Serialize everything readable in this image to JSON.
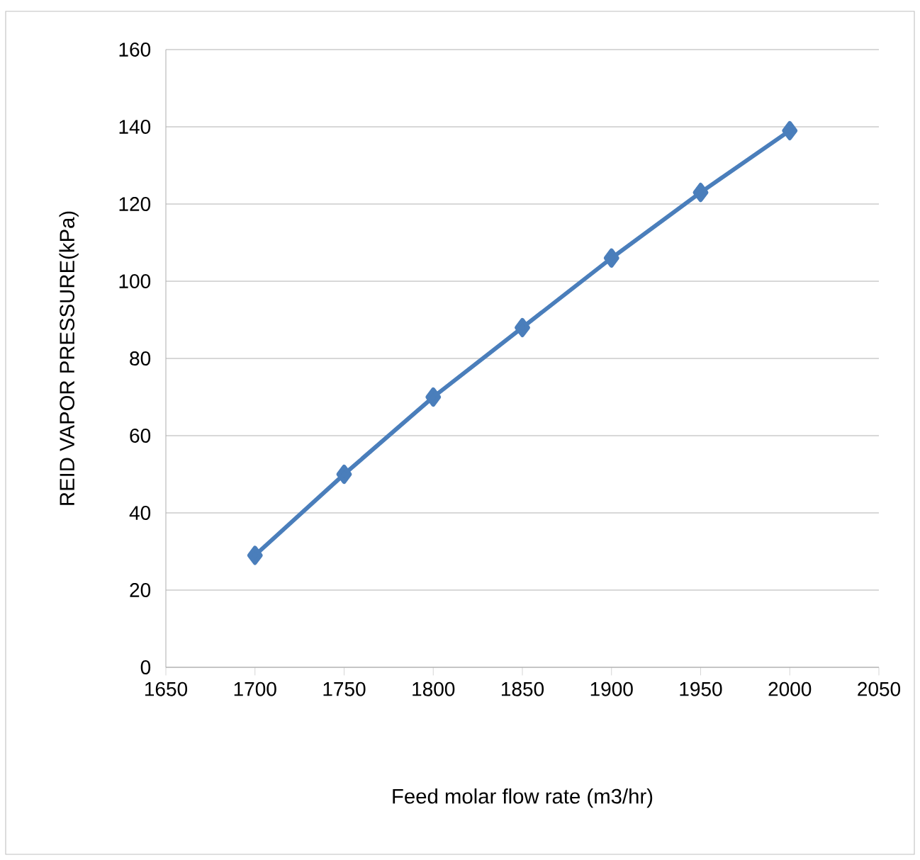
{
  "chart_data": {
    "type": "line",
    "xlabel": "Feed molar flow rate (m3/hr)",
    "ylabel": "REID VAPOR PRESSURE(kPa)",
    "x": [
      1700,
      1750,
      1800,
      1850,
      1900,
      1950,
      2000
    ],
    "series": [
      {
        "color": "#4a7ebb",
        "values": [
          29,
          50,
          70,
          88,
          106,
          123,
          139
        ]
      }
    ],
    "xlim": [
      1650,
      2050
    ],
    "xticks": [
      1650,
      1700,
      1750,
      1800,
      1850,
      1900,
      1950,
      2000,
      2050
    ],
    "ylim": [
      0,
      160
    ],
    "yticks": [
      0,
      20,
      40,
      60,
      80,
      100,
      120,
      140,
      160
    ],
    "grid": "y",
    "marker": "diamond",
    "line_style": "solid"
  }
}
